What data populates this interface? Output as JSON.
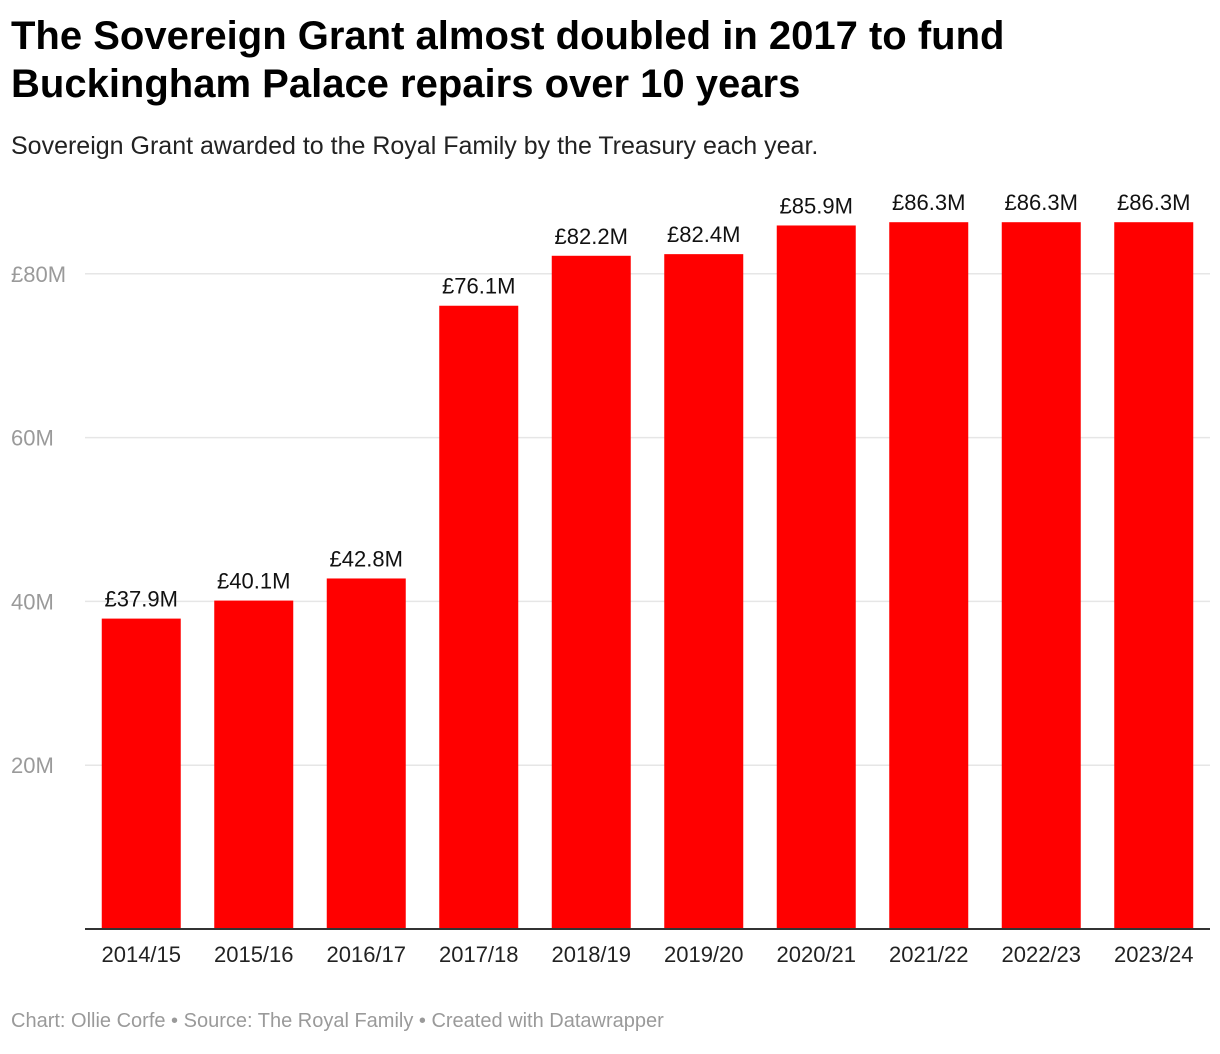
{
  "chart_data": {
    "type": "bar",
    "title": "The Sovereign Grant almost doubled in 2017 to fund Buckingham Palace repairs over 10 years",
    "subtitle": "Sovereign Grant awarded to the Royal Family by the Treasury each year.",
    "xlabel": "",
    "ylabel": "",
    "categories": [
      "2014/15",
      "2015/16",
      "2016/17",
      "2017/18",
      "2018/19",
      "2019/20",
      "2020/21",
      "2021/22",
      "2022/23",
      "2023/24"
    ],
    "values": [
      37.9,
      40.1,
      42.8,
      76.1,
      82.2,
      82.4,
      85.9,
      86.3,
      86.3,
      86.3
    ],
    "value_labels": [
      "£37.9M",
      "£40.1M",
      "£42.8M",
      "£76.1M",
      "£82.2M",
      "£82.4M",
      "£85.9M",
      "£86.3M",
      "£86.3M",
      "£86.3M"
    ],
    "yticks": [
      20,
      40,
      60,
      80
    ],
    "ytick_labels": [
      "20M",
      "40M",
      "60M",
      "£80M"
    ],
    "ylim": [
      0,
      86.3
    ],
    "grid": true,
    "legend": "none",
    "bar_color": "#ff0000",
    "gridline_color": "#e6e6e6",
    "baseline_color": "#333333"
  },
  "footer": {
    "text": "Chart: Ollie Corfe • Source: The Royal Family • Created with Datawrapper"
  }
}
